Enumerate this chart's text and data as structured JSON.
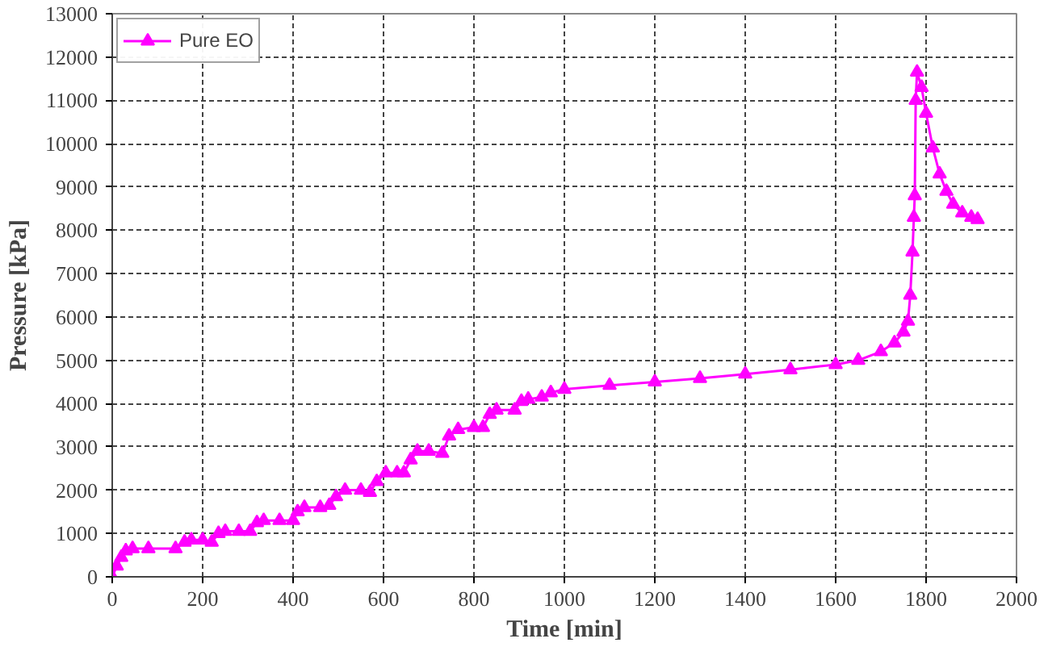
{
  "chart_data": {
    "type": "line",
    "xlabel": "Time [min]",
    "ylabel": "Pressure [kPa]",
    "xlim": [
      0,
      2000
    ],
    "xticks": [
      0,
      200,
      400,
      600,
      800,
      1000,
      1200,
      1400,
      1600,
      1800,
      2000
    ],
    "ylim": [
      0,
      13000
    ],
    "yticks": [
      0,
      1000,
      2000,
      3000,
      4000,
      5000,
      6000,
      7000,
      8000,
      9000,
      10000,
      11000,
      12000,
      13000
    ],
    "grid": true,
    "legend": "top left",
    "marker": "triangle",
    "line_style": "solid",
    "series": [
      {
        "name": "Pure EO",
        "color": "#ff00ff",
        "x": [
          0,
          10,
          20,
          30,
          45,
          80,
          140,
          160,
          175,
          200,
          220,
          235,
          250,
          280,
          305,
          320,
          335,
          370,
          400,
          410,
          425,
          460,
          480,
          495,
          515,
          550,
          570,
          585,
          605,
          630,
          645,
          660,
          675,
          700,
          730,
          745,
          765,
          800,
          820,
          835,
          850,
          890,
          905,
          920,
          950,
          970,
          1000,
          1100,
          1200,
          1300,
          1400,
          1500,
          1600,
          1650,
          1700,
          1730,
          1750,
          1760,
          1765,
          1770,
          1773,
          1775,
          1777,
          1780,
          1790,
          1800,
          1815,
          1830,
          1845,
          1860,
          1880,
          1900,
          1914
        ],
        "values": [
          0,
          250,
          450,
          600,
          650,
          650,
          650,
          800,
          850,
          850,
          800,
          1000,
          1050,
          1050,
          1050,
          1250,
          1300,
          1300,
          1300,
          1500,
          1600,
          1600,
          1650,
          1850,
          2000,
          2000,
          1950,
          2200,
          2400,
          2400,
          2400,
          2700,
          2900,
          2900,
          2850,
          3250,
          3400,
          3450,
          3450,
          3750,
          3850,
          3850,
          4050,
          4100,
          4150,
          4250,
          4330,
          4420,
          4500,
          4580,
          4680,
          4780,
          4900,
          5000,
          5200,
          5400,
          5650,
          5900,
          6500,
          7500,
          8300,
          8800,
          11000,
          11650,
          11300,
          10700,
          9900,
          9300,
          8900,
          8600,
          8400,
          8300,
          8250
        ]
      }
    ]
  }
}
